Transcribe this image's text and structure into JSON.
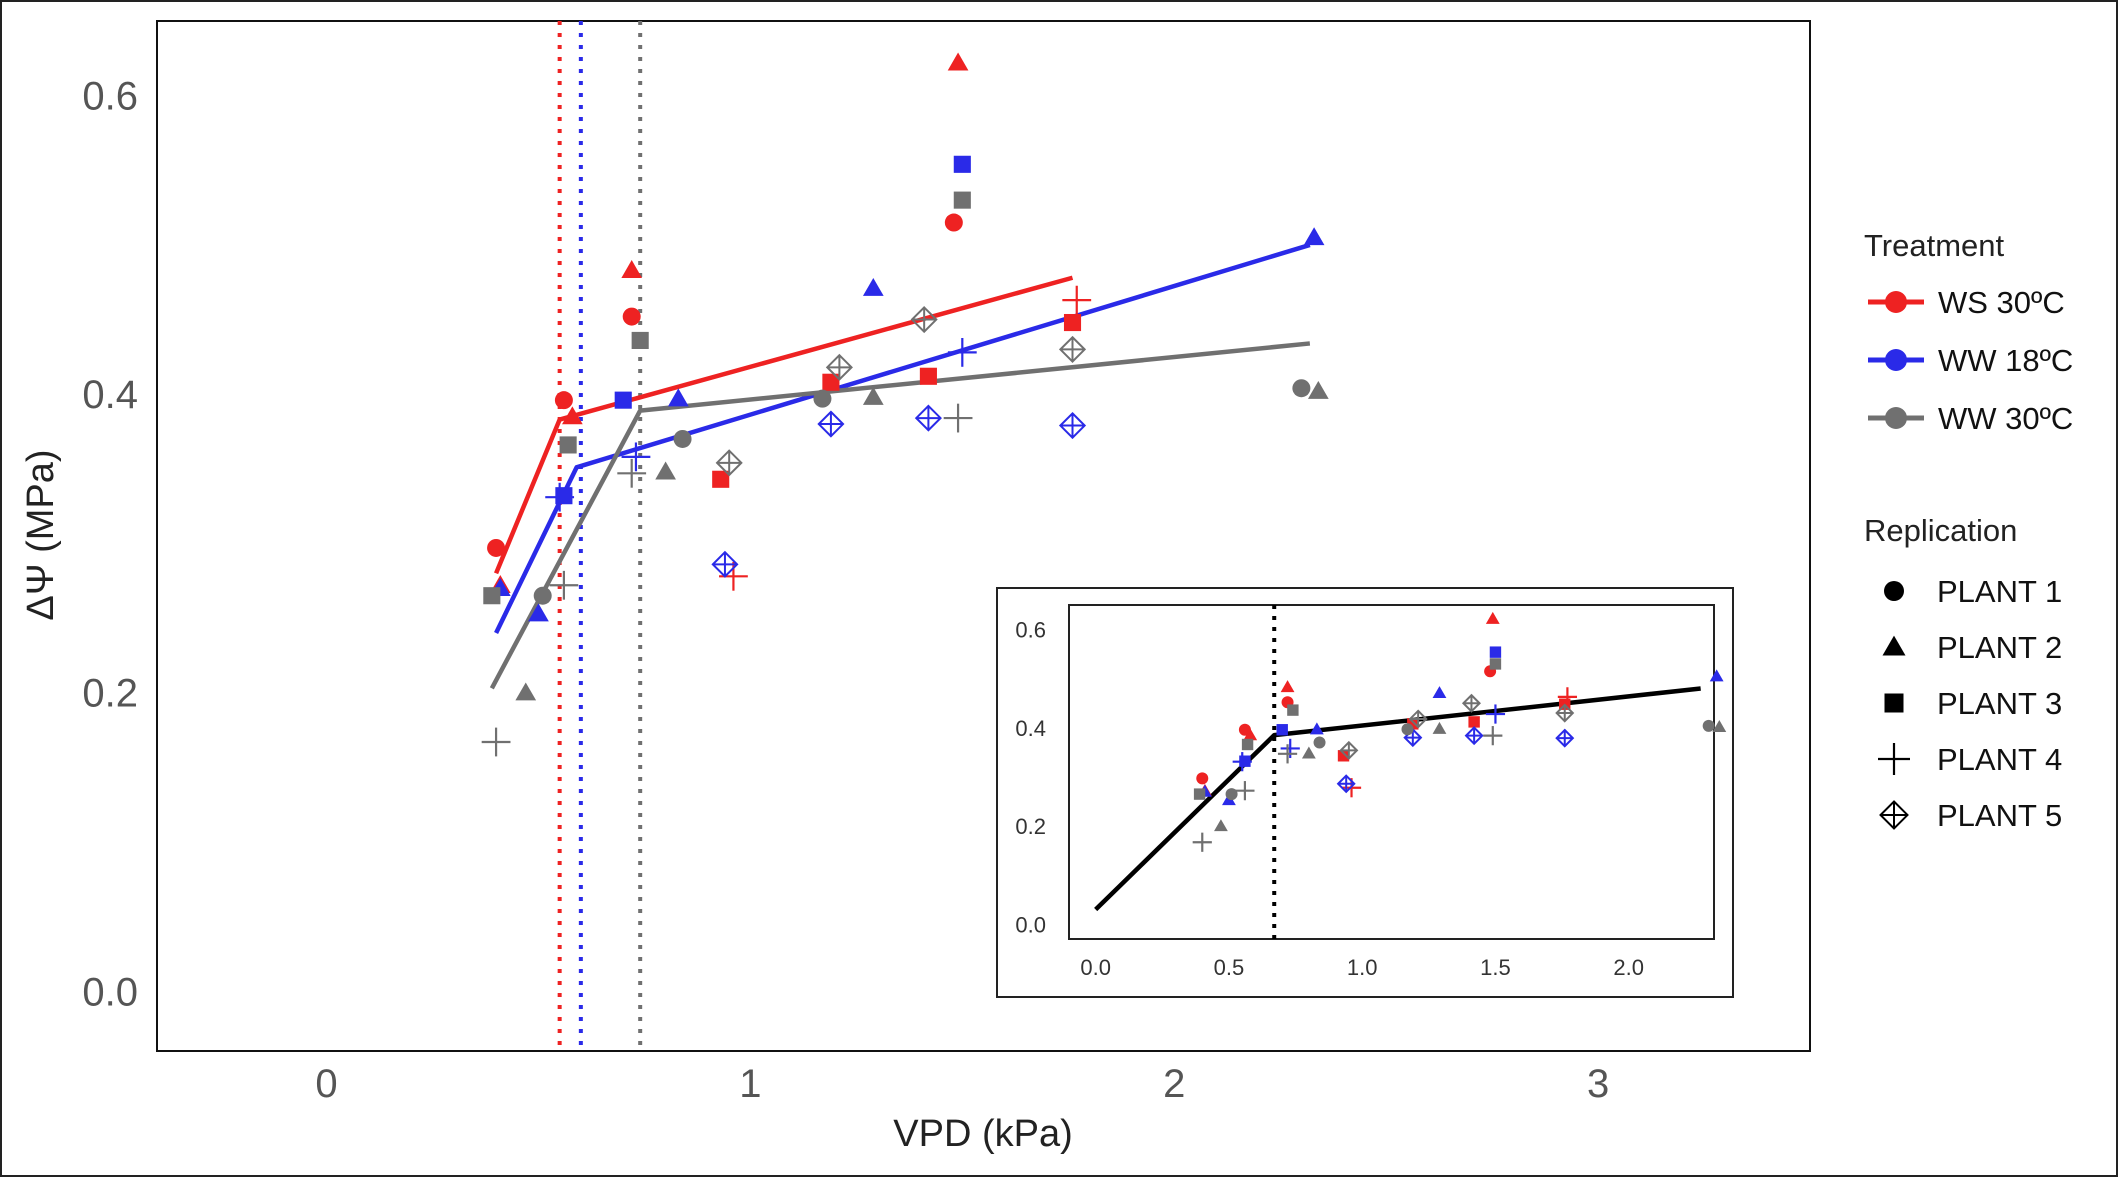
{
  "chart_data": [
    {
      "type": "scatter",
      "xlabel": "VPD (kPa)",
      "ylabel": "ΔΨ (MPa)",
      "xlim": [
        -0.4,
        3.5
      ],
      "ylim": [
        -0.04,
        0.65
      ],
      "x_ticks": [
        "0",
        "1",
        "2",
        "3"
      ],
      "y_ticks": [
        "0.0",
        "0.2",
        "0.4",
        "0.6"
      ],
      "grid": false,
      "legend": {
        "position": "right",
        "treatment_title": "Treatment",
        "replication_title": "Replication"
      },
      "series": [
        {
          "name": "WS 30ºC",
          "color": "#ee2222",
          "breakpoint_vpd": 0.55,
          "fit": [
            [
              0.4,
              0.28
            ],
            [
              0.55,
              0.383
            ],
            [
              1.76,
              0.478
            ]
          ],
          "points": [
            {
              "x": 0.4,
              "y": 0.297,
              "plant": "PLANT 1"
            },
            {
              "x": 0.56,
              "y": 0.396,
              "plant": "PLANT 1"
            },
            {
              "x": 0.72,
              "y": 0.452,
              "plant": "PLANT 1"
            },
            {
              "x": 1.48,
              "y": 0.515,
              "plant": "PLANT 1"
            },
            {
              "x": 0.41,
              "y": 0.272,
              "plant": "PLANT 2"
            },
            {
              "x": 0.58,
              "y": 0.385,
              "plant": "PLANT 2"
            },
            {
              "x": 0.72,
              "y": 0.483,
              "plant": "PLANT 2"
            },
            {
              "x": 1.49,
              "y": 0.622,
              "plant": "PLANT 2"
            },
            {
              "x": 0.93,
              "y": 0.343,
              "plant": "PLANT 3"
            },
            {
              "x": 1.19,
              "y": 0.408,
              "plant": "PLANT 3"
            },
            {
              "x": 1.42,
              "y": 0.412,
              "plant": "PLANT 3"
            },
            {
              "x": 1.76,
              "y": 0.448,
              "plant": "PLANT 3"
            },
            {
              "x": 0.96,
              "y": 0.278,
              "plant": "PLANT 4"
            },
            {
              "x": 1.77,
              "y": 0.463,
              "plant": "PLANT 4"
            }
          ]
        },
        {
          "name": "WW 18ºC",
          "color": "#2a2ae8",
          "breakpoint_vpd": 0.6,
          "fit": [
            [
              0.4,
              0.24
            ],
            [
              0.59,
              0.351
            ],
            [
              2.32,
              0.5
            ]
          ],
          "points": [
            {
              "x": 0.41,
              "y": 0.27,
              "plant": "PLANT 2"
            },
            {
              "x": 0.5,
              "y": 0.253,
              "plant": "PLANT 2"
            },
            {
              "x": 0.83,
              "y": 0.397,
              "plant": "PLANT 2"
            },
            {
              "x": 1.29,
              "y": 0.471,
              "plant": "PLANT 2"
            },
            {
              "x": 2.33,
              "y": 0.505,
              "plant": "PLANT 2"
            },
            {
              "x": 0.56,
              "y": 0.332,
              "plant": "PLANT 3"
            },
            {
              "x": 0.7,
              "y": 0.396,
              "plant": "PLANT 3"
            },
            {
              "x": 1.5,
              "y": 0.554,
              "plant": "PLANT 3"
            },
            {
              "x": 0.55,
              "y": 0.331,
              "plant": "PLANT 4"
            },
            {
              "x": 0.73,
              "y": 0.358,
              "plant": "PLANT 4"
            },
            {
              "x": 1.5,
              "y": 0.428,
              "plant": "PLANT 4"
            },
            {
              "x": 0.94,
              "y": 0.286,
              "plant": "PLANT 5"
            },
            {
              "x": 1.19,
              "y": 0.38,
              "plant": "PLANT 5"
            },
            {
              "x": 1.42,
              "y": 0.384,
              "plant": "PLANT 5"
            },
            {
              "x": 1.76,
              "y": 0.379,
              "plant": "PLANT 5"
            }
          ]
        },
        {
          "name": "WW 30ºC",
          "color": "#707070",
          "breakpoint_vpd": 0.74,
          "fit": [
            [
              0.39,
              0.203
            ],
            [
              0.74,
              0.389
            ],
            [
              2.32,
              0.434
            ]
          ],
          "points": [
            {
              "x": 0.51,
              "y": 0.265,
              "plant": "PLANT 1"
            },
            {
              "x": 0.84,
              "y": 0.37,
              "plant": "PLANT 1"
            },
            {
              "x": 1.17,
              "y": 0.397,
              "plant": "PLANT 1"
            },
            {
              "x": 2.3,
              "y": 0.404,
              "plant": "PLANT 1"
            },
            {
              "x": 0.47,
              "y": 0.2,
              "plant": "PLANT 2"
            },
            {
              "x": 0.8,
              "y": 0.348,
              "plant": "PLANT 2"
            },
            {
              "x": 1.29,
              "y": 0.398,
              "plant": "PLANT 2"
            },
            {
              "x": 2.34,
              "y": 0.402,
              "plant": "PLANT 2"
            },
            {
              "x": 0.39,
              "y": 0.265,
              "plant": "PLANT 3"
            },
            {
              "x": 0.57,
              "y": 0.366,
              "plant": "PLANT 3"
            },
            {
              "x": 0.74,
              "y": 0.436,
              "plant": "PLANT 3"
            },
            {
              "x": 1.5,
              "y": 0.53,
              "plant": "PLANT 3"
            },
            {
              "x": 0.4,
              "y": 0.167,
              "plant": "PLANT 4"
            },
            {
              "x": 0.56,
              "y": 0.272,
              "plant": "PLANT 4"
            },
            {
              "x": 0.72,
              "y": 0.347,
              "plant": "PLANT 4"
            },
            {
              "x": 1.49,
              "y": 0.384,
              "plant": "PLANT 4"
            },
            {
              "x": 0.95,
              "y": 0.354,
              "plant": "PLANT 5"
            },
            {
              "x": 1.21,
              "y": 0.418,
              "plant": "PLANT 5"
            },
            {
              "x": 1.41,
              "y": 0.45,
              "plant": "PLANT 5"
            },
            {
              "x": 1.76,
              "y": 0.43,
              "plant": "PLANT 5"
            }
          ]
        }
      ],
      "replication_legend": [
        "PLANT 1",
        "PLANT 2",
        "PLANT 3",
        "PLANT 4",
        "PLANT 5"
      ]
    },
    {
      "type": "scatter",
      "inset": true,
      "xlim": [
        -0.1,
        2.32
      ],
      "ylim": [
        -0.03,
        0.65
      ],
      "x_ticks": [
        "0.0",
        "0.5",
        "1.0",
        "1.5",
        "2.0"
      ],
      "y_ticks": [
        "0.0",
        "0.2",
        "0.4",
        "0.6"
      ],
      "breakpoint_vpd": 0.67,
      "fit": [
        [
          0.0,
          0.03
        ],
        [
          0.67,
          0.385
        ],
        [
          2.27,
          0.48
        ]
      ],
      "fit_color": "#000000"
    }
  ]
}
